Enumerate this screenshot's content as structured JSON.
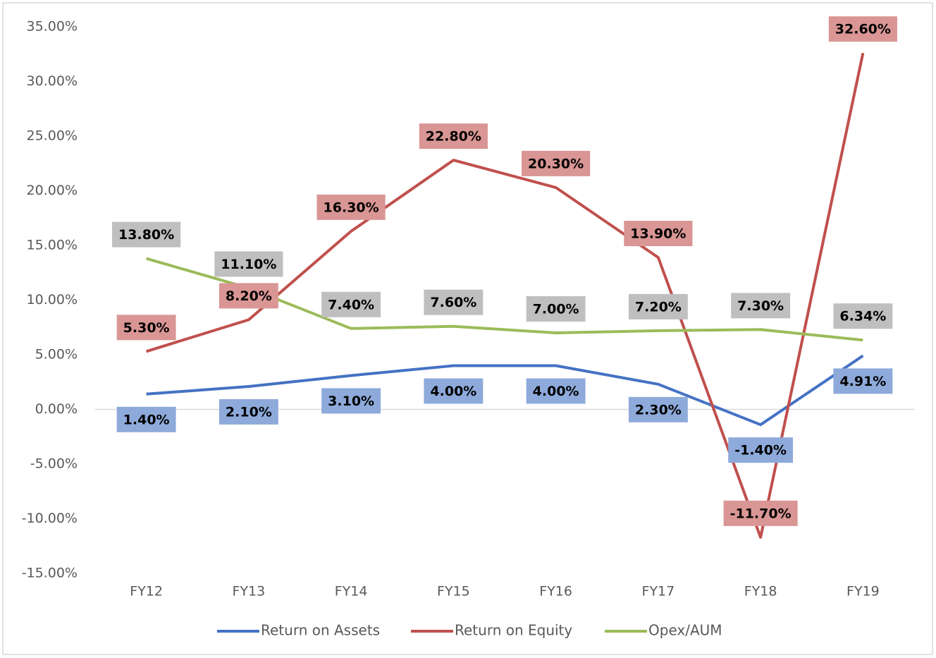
{
  "chart_data": {
    "type": "line",
    "categories": [
      "FY12",
      "FY13",
      "FY14",
      "FY15",
      "FY16",
      "FY17",
      "FY18",
      "FY19"
    ],
    "series": [
      {
        "name": "Return on Assets",
        "color": "#4472c4",
        "values": [
          1.4,
          2.1,
          3.1,
          4.0,
          4.0,
          2.3,
          -1.4,
          4.91
        ],
        "value_labels": [
          "1.40%",
          "2.10%",
          "3.10%",
          "4.00%",
          "4.00%",
          "2.30%",
          "-1.40%",
          "4.91%"
        ]
      },
      {
        "name": "Return on Equity",
        "color": "#c0504d",
        "values": [
          5.3,
          8.2,
          16.3,
          22.8,
          20.3,
          13.9,
          -11.7,
          32.6
        ],
        "value_labels": [
          "5.30%",
          "8.20%",
          "16.30%",
          "22.80%",
          "20.30%",
          "13.90%",
          "-11.70%",
          "32.60%"
        ]
      },
      {
        "name": "Opex/AUM",
        "color": "#9bbb59",
        "values": [
          13.8,
          11.1,
          7.4,
          7.6,
          7.0,
          7.2,
          7.3,
          6.34
        ],
        "value_labels": [
          "13.80%",
          "11.10%",
          "7.40%",
          "7.60%",
          "7.00%",
          "7.20%",
          "7.30%",
          "6.34%"
        ]
      }
    ],
    "ylim": [
      -15,
      35
    ],
    "yticks": [
      {
        "value": -15,
        "label": "-15.00%"
      },
      {
        "value": -10,
        "label": "-10.00%"
      },
      {
        "value": -5,
        "label": "-5.00%"
      },
      {
        "value": 0,
        "label": "0.00%"
      },
      {
        "value": 5,
        "label": "5.00%"
      },
      {
        "value": 10,
        "label": "10.00%"
      },
      {
        "value": 15,
        "label": "15.00%"
      },
      {
        "value": 20,
        "label": "20.00%"
      },
      {
        "value": 25,
        "label": "25.00%"
      },
      {
        "value": 30,
        "label": "30.00%"
      },
      {
        "value": 35,
        "label": "35.00%"
      }
    ],
    "grid": false,
    "legend": "bottom"
  }
}
